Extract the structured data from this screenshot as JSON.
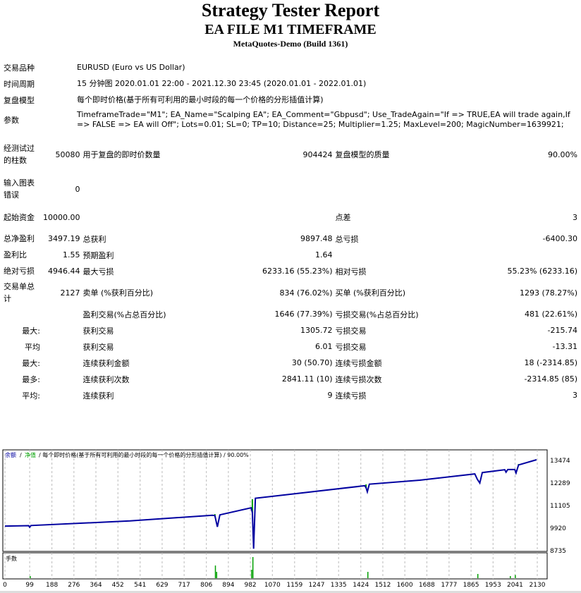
{
  "header": {
    "title": "Strategy Tester Report",
    "subtitle": "EA FILE M1 TIMEFRAME",
    "build": "MetaQuotes-Demo (Build 1361)"
  },
  "info": [
    {
      "label": "交易品种",
      "value": "EURUSD (Euro vs US Dollar)"
    },
    {
      "label": "时间周期",
      "value": "15 分钟图 2020.01.01 22:00 - 2021.12.30 23:45 (2020.01.01 - 2022.01.01)"
    },
    {
      "label": "复盘模型",
      "value": "每个即时价格(基于所有可利用的最小时段的每一个价格的分形插值计算)"
    },
    {
      "label": "参数",
      "value": "TimeframeTrade=\"M1\"; EA_Name=\"Scalping EA\"; EA_Comment=\"Gbpusd\"; Use_TradeAgain=\"If => TRUE,EA will trade again,If => FALSE => EA will Off\"; Lots=0.01; SL=0; TP=10; Distance=25; Multiplier=1.25; MaxLevel=200; MagicNumber=1639921;"
    }
  ],
  "stats": [
    [
      "经测试过的柱数",
      "50080",
      "用于复盘的即时价数量",
      "904424",
      "复盘模型的质量",
      "90.00%"
    ],
    [
      "输入图表错误",
      "0",
      "",
      "",
      "",
      ""
    ],
    [
      "起始资金",
      "10000.00",
      "",
      "",
      "点差",
      "3"
    ],
    [
      "总净盈利",
      "3497.19",
      "总获利",
      "9897.48",
      "总亏损",
      "-6400.30"
    ],
    [
      "盈利比",
      "1.55",
      "预期盈利",
      "1.64",
      "",
      ""
    ],
    [
      "绝对亏损",
      "4946.44",
      "最大亏损",
      "6233.16 (55.23%)",
      "相对亏损",
      "55.23% (6233.16)"
    ],
    [
      "交易单总计",
      "2127",
      "卖单 (%获利百分比)",
      "834 (76.02%)",
      "买单 (%获利百分比)",
      "1293 (78.27%)"
    ],
    [
      "",
      "",
      "盈利交易(%占总百分比)",
      "1646 (77.39%)",
      "亏损交易(%占总百分比)",
      "481 (22.61%)"
    ],
    [
      "最大:",
      "",
      "获利交易",
      "1305.72",
      "亏损交易",
      "-215.74"
    ],
    [
      "平均",
      "",
      "获利交易",
      "6.01",
      "亏损交易",
      "-13.31"
    ],
    [
      "最大:",
      "",
      "连续获利金额",
      "30 (50.70)",
      "连续亏损金额",
      "18 (-2314.85)"
    ],
    [
      "最多:",
      "",
      "连续获利次数",
      "2841.11 (10)",
      "连续亏损次数",
      "-2314.85 (85)"
    ],
    [
      "平均:",
      "",
      "连续获利",
      "9",
      "连续亏损",
      "3"
    ]
  ],
  "chart_data": {
    "type": "line",
    "legend": {
      "balance": "余额",
      "sep1": " / ",
      "equity": "净值",
      "rest": " / 每个即时价格(基于所有可利用的最小时段的每一个价格的分形插值计算) / 90.00%"
    },
    "colors": {
      "balance": "#0000a0",
      "equity": "#00a000",
      "volume": "#00a000"
    },
    "y_ticks": [
      13474,
      12289,
      11105,
      9920,
      8735
    ],
    "x_ticks": [
      0,
      99,
      188,
      276,
      364,
      452,
      541,
      629,
      717,
      806,
      894,
      982,
      1070,
      1159,
      1247,
      1335,
      1424,
      1512,
      1600,
      1688,
      1777,
      1865,
      1953,
      2041,
      2130
    ],
    "xlim": [
      0,
      2130
    ],
    "ylim": [
      8735,
      13474
    ],
    "volume_label": "手数",
    "balance": [
      [
        0,
        9990
      ],
      [
        95,
        10010
      ],
      [
        99,
        9930
      ],
      [
        104,
        10020
      ],
      [
        500,
        10260
      ],
      [
        830,
        10560
      ],
      [
        840,
        10540
      ],
      [
        850,
        9950
      ],
      [
        860,
        10580
      ],
      [
        985,
        10950
      ],
      [
        990,
        10700
      ],
      [
        995,
        8800
      ],
      [
        1002,
        11450
      ],
      [
        1440,
        12110
      ],
      [
        1445,
        12000
      ],
      [
        1450,
        11790
      ],
      [
        1458,
        12190
      ],
      [
        1660,
        12400
      ],
      [
        1880,
        12730
      ],
      [
        1890,
        12450
      ],
      [
        1900,
        12250
      ],
      [
        1910,
        12800
      ],
      [
        2000,
        12950
      ],
      [
        2005,
        12820
      ],
      [
        2012,
        12960
      ],
      [
        2040,
        12960
      ],
      [
        2045,
        12780
      ],
      [
        2055,
        13200
      ],
      [
        2127,
        13474
      ]
    ],
    "equity_spikes": [
      [
        840,
        10620
      ],
      [
        990,
        11400
      ],
      [
        1445,
        12180
      ],
      [
        2055,
        13250
      ]
    ],
    "volume": [
      [
        99,
        0.1
      ],
      [
        840,
        0.6
      ],
      [
        845,
        0.3
      ],
      [
        990,
        1.0
      ],
      [
        985,
        0.4
      ],
      [
        1450,
        0.3
      ],
      [
        1890,
        0.2
      ],
      [
        2020,
        0.1
      ],
      [
        2040,
        0.15
      ]
    ]
  }
}
